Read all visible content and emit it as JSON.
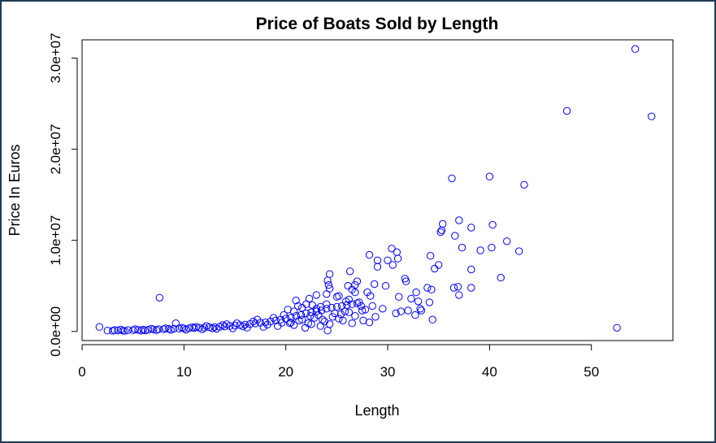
{
  "chart_data": {
    "type": "scatter",
    "title": "Price of Boats Sold by Length",
    "xlabel": "Length",
    "ylabel": "Price In Euros",
    "xlim": [
      0,
      58
    ],
    "ylim": [
      -1000000,
      32000000
    ],
    "x_ticks": [
      0,
      10,
      20,
      30,
      40,
      50
    ],
    "x_tick_labels": [
      "0",
      "10",
      "20",
      "30",
      "40",
      "50"
    ],
    "y_ticks": [
      0,
      10000000,
      20000000,
      30000000
    ],
    "y_tick_labels": [
      "0.0e+00",
      "1.0e+07",
      "2.0e+07",
      "3.0e+07"
    ],
    "grid": false,
    "marker": "open-circle",
    "point_color": "#0000ff",
    "series": [
      {
        "points": [
          [
            54.3,
            31000000
          ],
          [
            47.6,
            24200000
          ],
          [
            55.9,
            23600000
          ],
          [
            36.3,
            16800000
          ],
          [
            40.0,
            17000000
          ],
          [
            43.4,
            16100000
          ],
          [
            35.4,
            11800000
          ],
          [
            37.0,
            12200000
          ],
          [
            40.3,
            11700000
          ],
          [
            38.2,
            11400000
          ],
          [
            35.2,
            10900000
          ],
          [
            35.3,
            11100000
          ],
          [
            36.6,
            10500000
          ],
          [
            41.7,
            9900000
          ],
          [
            40.2,
            9200000
          ],
          [
            37.3,
            9200000
          ],
          [
            39.1,
            8900000
          ],
          [
            42.9,
            8800000
          ],
          [
            34.2,
            8300000
          ],
          [
            30.4,
            9100000
          ],
          [
            30.9,
            8700000
          ],
          [
            31.0,
            8000000
          ],
          [
            30.5,
            7300000
          ],
          [
            29.0,
            7100000
          ],
          [
            30.0,
            7800000
          ],
          [
            34.6,
            6900000
          ],
          [
            35.0,
            7300000
          ],
          [
            38.2,
            6800000
          ],
          [
            41.1,
            5900000
          ],
          [
            36.9,
            4900000
          ],
          [
            38.2,
            4800000
          ],
          [
            36.5,
            4800000
          ],
          [
            37.0,
            4000000
          ],
          [
            28.2,
            8400000
          ],
          [
            29.0,
            7800000
          ],
          [
            24.3,
            6300000
          ],
          [
            26.3,
            6600000
          ],
          [
            27.0,
            5500000
          ],
          [
            26.8,
            5100000
          ],
          [
            28.7,
            5200000
          ],
          [
            29.8,
            5000000
          ],
          [
            31.7,
            5800000
          ],
          [
            31.8,
            5500000
          ],
          [
            33.9,
            4800000
          ],
          [
            34.3,
            4600000
          ],
          [
            24.1,
            5600000
          ],
          [
            24.2,
            5100000
          ],
          [
            24.3,
            4700000
          ],
          [
            26.1,
            5000000
          ],
          [
            26.5,
            4600000
          ],
          [
            26.8,
            4300000
          ],
          [
            28.0,
            4300000
          ],
          [
            28.3,
            3900000
          ],
          [
            32.8,
            4300000
          ],
          [
            32.3,
            3600000
          ],
          [
            31.1,
            3800000
          ],
          [
            33.0,
            3300000
          ],
          [
            34.1,
            3200000
          ],
          [
            33.2,
            2500000
          ],
          [
            32.0,
            2300000
          ],
          [
            31.3,
            2200000
          ],
          [
            32.7,
            1800000
          ],
          [
            30.8,
            2000000
          ],
          [
            33.3,
            2300000
          ],
          [
            34.4,
            1300000
          ],
          [
            29.5,
            2500000
          ],
          [
            28.2,
            1000000
          ],
          [
            28.8,
            1600000
          ],
          [
            23.0,
            4000000
          ],
          [
            22.3,
            3600000
          ],
          [
            21.0,
            3400000
          ],
          [
            24.0,
            4100000
          ],
          [
            25.2,
            3900000
          ],
          [
            25.9,
            3300000
          ],
          [
            27.2,
            3200000
          ],
          [
            27.4,
            2800000
          ],
          [
            22.6,
            2900000
          ],
          [
            23.4,
            2700000
          ],
          [
            20.2,
            2400000
          ],
          [
            21.6,
            2600000
          ],
          [
            7.6,
            3700000
          ],
          [
            9.2,
            900000
          ],
          [
            1.7,
            500000
          ],
          [
            52.5,
            400000
          ],
          [
            26.5,
            900000
          ],
          [
            27.6,
            1200000
          ],
          [
            24.3,
            800000
          ],
          [
            25.6,
            1200000
          ],
          [
            24.1,
            100000
          ],
          [
            22.5,
            800000
          ],
          [
            23.4,
            600000
          ],
          [
            21.9,
            400000
          ],
          [
            2.5,
            100000
          ],
          [
            3.0,
            80000
          ],
          [
            3.5,
            120000
          ],
          [
            4.0,
            90000
          ],
          [
            4.5,
            150000
          ],
          [
            5.0,
            140000
          ],
          [
            5.5,
            180000
          ],
          [
            6.0,
            200000
          ],
          [
            6.5,
            190000
          ],
          [
            7.0,
            220000
          ],
          [
            7.5,
            240000
          ],
          [
            8.0,
            260000
          ],
          [
            8.5,
            280000
          ],
          [
            9.0,
            300000
          ],
          [
            9.5,
            320000
          ],
          [
            10.0,
            330000
          ],
          [
            10.5,
            360000
          ],
          [
            11.0,
            380000
          ],
          [
            11.5,
            400000
          ],
          [
            12.0,
            420000
          ],
          [
            12.5,
            460000
          ],
          [
            13.0,
            480000
          ],
          [
            13.5,
            520000
          ],
          [
            14.0,
            560000
          ],
          [
            14.5,
            600000
          ],
          [
            15.0,
            650000
          ],
          [
            15.5,
            700000
          ],
          [
            16.0,
            760000
          ],
          [
            16.5,
            820000
          ],
          [
            17.0,
            880000
          ],
          [
            17.5,
            950000
          ],
          [
            18.0,
            1000000
          ],
          [
            18.5,
            1100000
          ],
          [
            19.0,
            1200000
          ],
          [
            19.5,
            1300000
          ],
          [
            20.0,
            1400000
          ],
          [
            20.5,
            1500000
          ],
          [
            21.0,
            1700000
          ],
          [
            21.5,
            1800000
          ],
          [
            22.0,
            2000000
          ],
          [
            22.5,
            2100000
          ],
          [
            23.0,
            2200000
          ],
          [
            23.5,
            2300000
          ],
          [
            24.0,
            2500000
          ],
          [
            24.5,
            2600000
          ],
          [
            25.0,
            2700000
          ],
          [
            25.5,
            2800000
          ],
          [
            26.0,
            2900000
          ],
          [
            26.5,
            3000000
          ],
          [
            27.0,
            3100000
          ],
          [
            4.2,
            60000
          ],
          [
            5.8,
            90000
          ],
          [
            7.3,
            150000
          ],
          [
            8.7,
            180000
          ],
          [
            10.2,
            200000
          ],
          [
            11.8,
            250000
          ],
          [
            13.2,
            300000
          ],
          [
            14.8,
            350000
          ],
          [
            16.2,
            420000
          ],
          [
            17.8,
            500000
          ],
          [
            19.2,
            600000
          ],
          [
            20.8,
            700000
          ],
          [
            22.2,
            900000
          ],
          [
            23.8,
            1100000
          ],
          [
            25.2,
            1400000
          ],
          [
            26.8,
            1700000
          ],
          [
            20.5,
            1000000
          ],
          [
            21.3,
            1200000
          ],
          [
            22.8,
            1500000
          ],
          [
            23.2,
            1800000
          ],
          [
            24.8,
            2000000
          ],
          [
            25.8,
            2200000
          ],
          [
            27.8,
            2400000
          ],
          [
            26.2,
            3500000
          ],
          [
            25.0,
            3800000
          ],
          [
            22.0,
            3000000
          ],
          [
            21.2,
            2800000
          ],
          [
            20.8,
            2200000
          ],
          [
            19.8,
            1800000
          ],
          [
            18.8,
            1500000
          ],
          [
            17.2,
            1300000
          ],
          [
            16.8,
            1100000
          ],
          [
            15.2,
            900000
          ],
          [
            14.2,
            800000
          ],
          [
            13.8,
            700000
          ],
          [
            12.2,
            600000
          ],
          [
            11.2,
            500000
          ],
          [
            10.8,
            450000
          ],
          [
            9.8,
            400000
          ],
          [
            8.2,
            350000
          ],
          [
            6.8,
            300000
          ],
          [
            5.2,
            250000
          ],
          [
            3.8,
            200000
          ],
          [
            3.2,
            150000
          ],
          [
            6.2,
            120000
          ],
          [
            12.8,
            350000
          ],
          [
            15.8,
            550000
          ],
          [
            18.2,
            750000
          ],
          [
            19.6,
            950000
          ],
          [
            23.6,
            1300000
          ],
          [
            24.6,
            1600000
          ],
          [
            25.4,
            1900000
          ],
          [
            26.2,
            2100000
          ],
          [
            27.5,
            2300000
          ],
          [
            28.5,
            2800000
          ],
          [
            24.0,
            3000000
          ],
          [
            23.0,
            2500000
          ],
          [
            22.4,
            1700000
          ],
          [
            21.6,
            1300000
          ],
          [
            20.4,
            900000
          ]
        ]
      }
    ]
  }
}
